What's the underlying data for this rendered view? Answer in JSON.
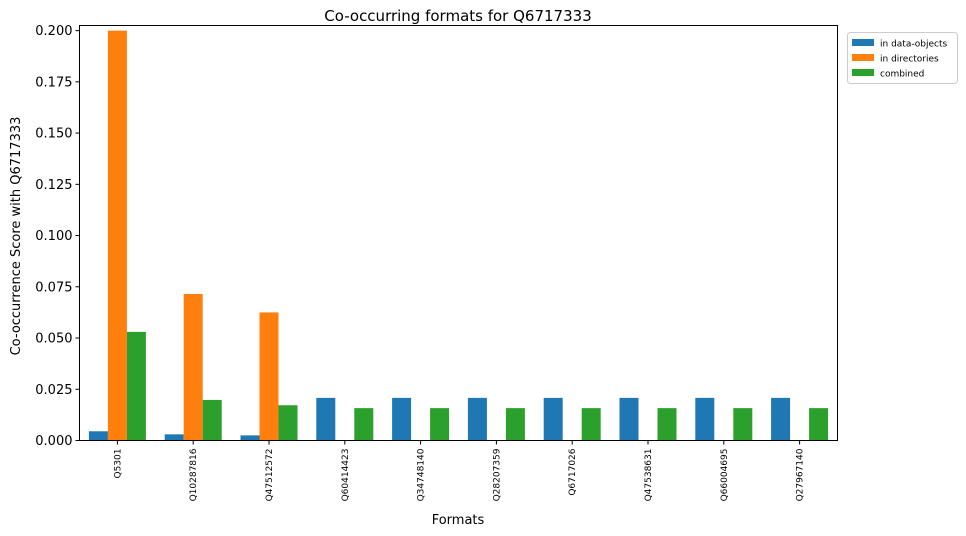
{
  "chart_data": {
    "type": "bar",
    "title": "Co-occurring formats for Q6717333",
    "xlabel": "Formats",
    "ylabel": "Co-occurrence Score with Q6717333",
    "ylim": [
      0,
      0.2025
    ],
    "yticks": [
      "0.000",
      "0.025",
      "0.050",
      "0.075",
      "0.100",
      "0.125",
      "0.150",
      "0.175",
      "0.200"
    ],
    "grid": false,
    "legend_position": "top-right outside",
    "categories": [
      "Q5301",
      "Q10287816",
      "Q47512572",
      "Q60414423",
      "Q34748140",
      "Q28207359",
      "Q6717026",
      "Q47538631",
      "Q66004695",
      "Q27967140"
    ],
    "series": [
      {
        "name": "in data-objects",
        "color": "#1f77b4",
        "values": [
          0.0045,
          0.003,
          0.0025,
          0.0208,
          0.0208,
          0.0208,
          0.0208,
          0.0208,
          0.0208,
          0.0208
        ]
      },
      {
        "name": "in directories",
        "color": "#ff7f0e",
        "values": [
          0.2,
          0.0715,
          0.0625,
          0,
          0,
          0,
          0,
          0,
          0,
          0
        ]
      },
      {
        "name": "combined",
        "color": "#2ca02c",
        "values": [
          0.053,
          0.0198,
          0.0172,
          0.0158,
          0.0158,
          0.0158,
          0.0158,
          0.0158,
          0.0158,
          0.0158
        ]
      }
    ]
  }
}
